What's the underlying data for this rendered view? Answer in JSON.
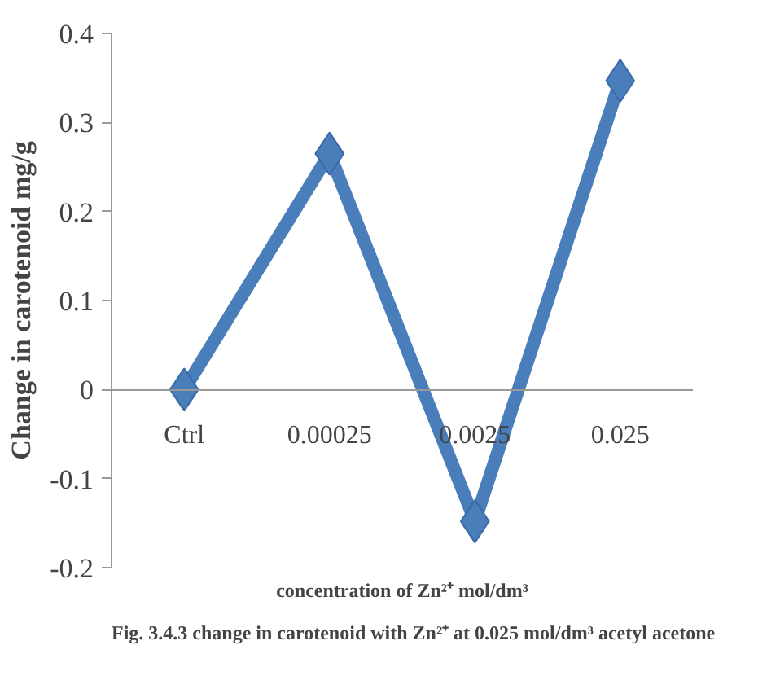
{
  "chart_data": {
    "type": "line",
    "xlabel": "concentration of Zn²⁺ mol/dm³",
    "ylabel": "Change in carotenoid mg/g",
    "categories": [
      "Ctrl",
      "0.00025",
      "0.0025",
      "0.025"
    ],
    "series": [
      {
        "color": "#4a7ebb",
        "values": [
          0,
          0.265,
          -0.148,
          0.347
        ]
      }
    ],
    "ylim": [
      -0.2,
      0.4
    ],
    "yticks": [
      -0.2,
      -0.1,
      0,
      0.1,
      0.2,
      0.3,
      0.4
    ],
    "marker": "diamond",
    "line_style": "solid",
    "grid": false,
    "annotations": [
      "Fig. 3.4.3 change in carotenoid with Zn²⁺ at 0.025 mol/dm³ acetyl acetone"
    ]
  }
}
